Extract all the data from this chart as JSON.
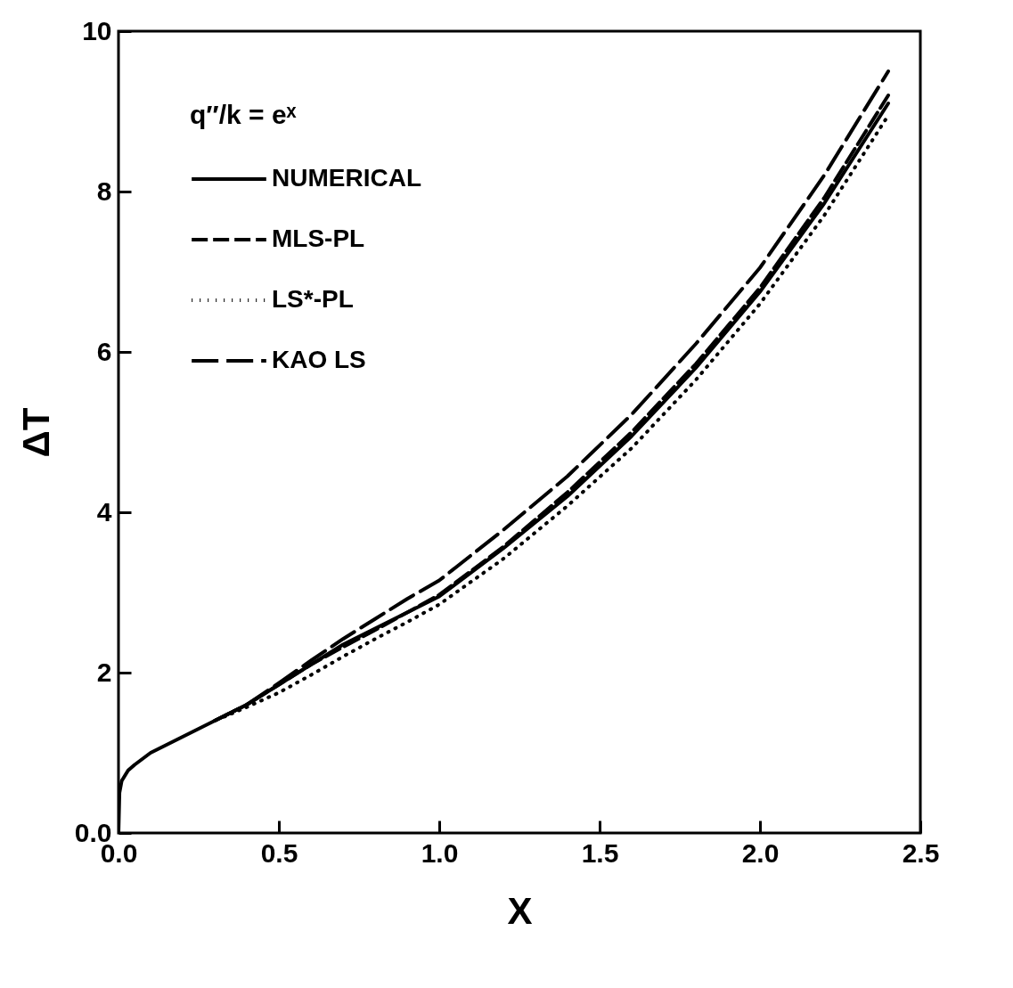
{
  "chart_data": {
    "type": "line",
    "xlabel": "X",
    "ylabel": "ΔT",
    "legend_title": "q″/k = eˣ",
    "legend": "top left",
    "grid": false,
    "xlim": [
      0,
      2.5
    ],
    "xticks": [
      {
        "value": 0,
        "label": "0.0"
      },
      0.5,
      {
        "value": 1,
        "label": "1.0"
      },
      1.5,
      {
        "value": 2,
        "label": "2.0"
      },
      2.5
    ],
    "ylim": [
      0,
      10
    ],
    "yticks": [
      {
        "value": 0,
        "label": "0.0"
      },
      2,
      4,
      6,
      8,
      10
    ],
    "series": [
      {
        "name": "NUMERICAL",
        "color": "#000000",
        "line_style": "solid",
        "x": [
          0,
          0.003,
          0.01,
          0.03,
          0.05,
          0.1,
          0.15,
          0.2,
          0.3,
          0.4,
          0.5,
          0.6,
          0.7,
          0.8,
          0.9,
          1.0,
          1.2,
          1.4,
          1.6,
          1.8,
          2.0,
          2.2,
          2.4
        ],
        "values": [
          0,
          0.5,
          0.65,
          0.78,
          0.85,
          1.0,
          1.1,
          1.2,
          1.4,
          1.6,
          1.85,
          2.1,
          2.35,
          2.55,
          2.75,
          2.95,
          3.55,
          4.2,
          4.95,
          5.8,
          6.75,
          7.85,
          9.1
        ]
      },
      {
        "name": "MLS-PL",
        "color": "#000000",
        "line_style": "dashed",
        "x": [
          0.3,
          0.4,
          0.5,
          0.6,
          0.7,
          0.8,
          0.9,
          1.0,
          1.2,
          1.4,
          1.6,
          1.8,
          2.0,
          2.2,
          2.4
        ],
        "values": [
          1.4,
          1.6,
          1.85,
          2.1,
          2.32,
          2.53,
          2.75,
          2.97,
          3.57,
          4.25,
          5.0,
          5.85,
          6.8,
          7.92,
          9.2
        ]
      },
      {
        "name": "LS*-PL",
        "color": "#000000",
        "line_style": "dotted",
        "x": [
          0.33,
          0.4,
          0.5,
          0.6,
          0.7,
          0.8,
          0.9,
          1.0,
          1.2,
          1.4,
          1.6,
          1.8,
          2.0,
          2.2,
          2.4
        ],
        "values": [
          1.45,
          1.57,
          1.75,
          1.97,
          2.2,
          2.42,
          2.63,
          2.85,
          3.42,
          4.08,
          4.8,
          5.65,
          6.6,
          7.7,
          8.95
        ]
      },
      {
        "name": "KAO LS",
        "color": "#000000",
        "line_style": "dashed",
        "x": [
          0.3,
          0.4,
          0.5,
          0.6,
          0.7,
          0.8,
          0.9,
          1.0,
          1.2,
          1.4,
          1.6,
          1.8,
          2.0,
          2.2,
          2.4
        ],
        "values": [
          1.4,
          1.6,
          1.87,
          2.15,
          2.42,
          2.67,
          2.92,
          3.15,
          3.78,
          4.45,
          5.22,
          6.1,
          7.05,
          8.2,
          9.5
        ]
      }
    ]
  }
}
